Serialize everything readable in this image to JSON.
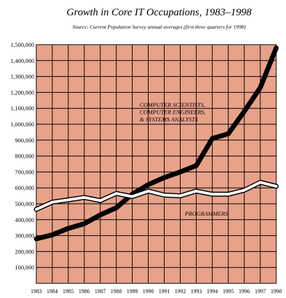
{
  "chart_data": {
    "type": "line",
    "title": "Growth in Core IT Occupations, 1983–1998",
    "subtitle": "Source: Current Population Survey annual averages (first three quarters for 1998)",
    "x": [
      "1983",
      "1984",
      "1985",
      "1986",
      "1987",
      "1988",
      "1989",
      "1990",
      "1991",
      "1992",
      "1993",
      "1994",
      "1995",
      "1996",
      "1997",
      "1998"
    ],
    "ylim": [
      0,
      1500000
    ],
    "yticks": [
      "100,000",
      "200,000",
      "300,000",
      "400,000",
      "500,000",
      "600,000",
      "700,000",
      "800,000",
      "900,000",
      "1,000,000",
      "1,100,000",
      "1,200,000",
      "1,300,000",
      "1,400,000",
      "1,500,000"
    ],
    "grid": true,
    "background_color": "#E8A28A",
    "series": [
      {
        "name": "COMPUTER SCIENTISTS, COMPUTER ENGINEERS, & SYSTEMS ANALYSTS",
        "color": "#000000",
        "values": [
          280000,
          305000,
          345000,
          375000,
          430000,
          475000,
          560000,
          620000,
          665000,
          700000,
          740000,
          910000,
          940000,
          1080000,
          1230000,
          1480000
        ]
      },
      {
        "name": "PROGRAMMERS",
        "color": "#ffffff",
        "values": [
          465000,
          510000,
          525000,
          540000,
          520000,
          565000,
          545000,
          580000,
          555000,
          550000,
          580000,
          560000,
          560000,
          585000,
          635000,
          610000
        ]
      }
    ],
    "annotations": [
      {
        "lines": [
          "COMPUTER SCIENTISTS,",
          "COMPUTER ENGINEERS,",
          "& SYSTEMS ANALYSTS"
        ]
      },
      {
        "lines": [
          "PROGRAMMERS"
        ]
      }
    ]
  }
}
